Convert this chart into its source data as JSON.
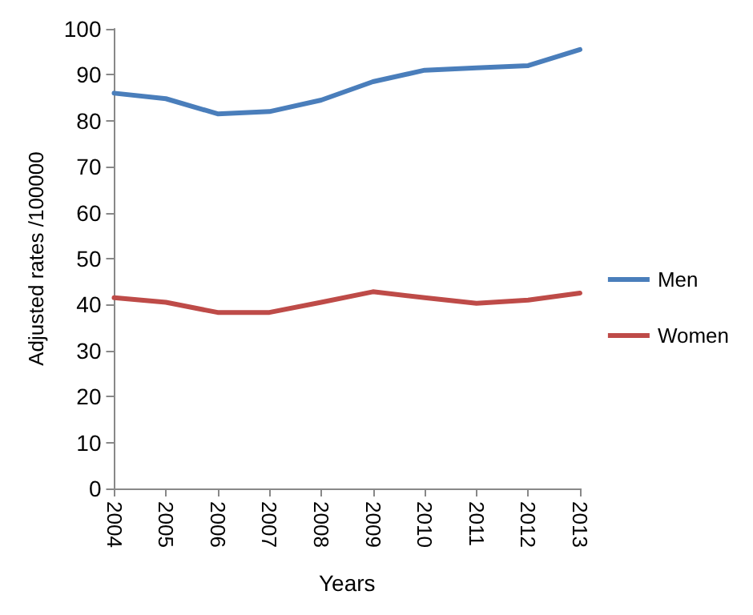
{
  "chart_data": {
    "type": "line",
    "xlabel": "Years",
    "ylabel": "Adjusted rates /100000",
    "categories": [
      "2004",
      "2005",
      "2006",
      "2007",
      "2008",
      "2009",
      "2010",
      "2011",
      "2012",
      "2013"
    ],
    "series": [
      {
        "name": "Men",
        "color": "#4a7ebb",
        "values": [
          86,
          84.8,
          81.5,
          82,
          84.5,
          88.5,
          91,
          91.5,
          92,
          95.5
        ]
      },
      {
        "name": "Women",
        "color": "#be4b48",
        "values": [
          41.5,
          40.5,
          38.3,
          38.3,
          40.5,
          42.8,
          41.5,
          40.3,
          41,
          42.5
        ]
      }
    ],
    "ylim": [
      0,
      100
    ],
    "yticks": [
      0,
      10,
      20,
      30,
      40,
      50,
      60,
      70,
      80,
      90,
      100
    ],
    "grid": false,
    "legend": "right",
    "marker": "none"
  }
}
